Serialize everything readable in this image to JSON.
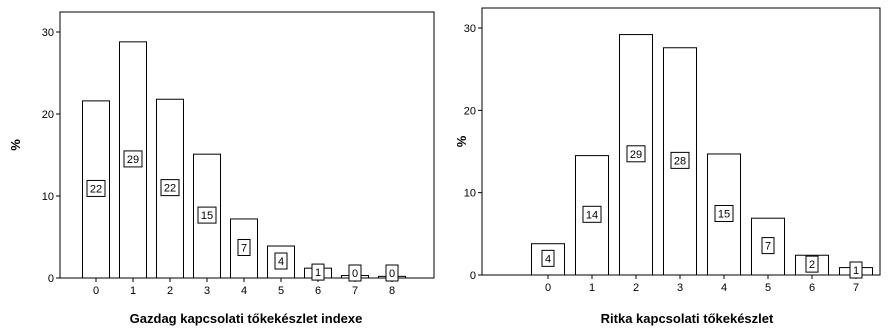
{
  "chart_data": [
    {
      "type": "bar",
      "title": "",
      "xlabel": "Gazdag kapcsolati tőkekészlet indexe",
      "ylabel": "%",
      "categories": [
        "0",
        "1",
        "2",
        "3",
        "4",
        "5",
        "6",
        "7",
        "8"
      ],
      "values": [
        21.6,
        28.8,
        21.8,
        15.1,
        7.2,
        3.9,
        1.2,
        0.3,
        0.2
      ],
      "data_labels": [
        "22",
        "29",
        "22",
        "15",
        "7",
        "4",
        "1",
        "0",
        "0"
      ],
      "ylim": [
        0,
        30
      ],
      "yticks": [
        "0",
        "10",
        "20",
        "30"
      ],
      "grid": false,
      "colors": {
        "bar_fill": "#ffffff",
        "bar_stroke": "#000000"
      }
    },
    {
      "type": "bar",
      "title": "",
      "xlabel": "Ritka kapcsolati tőkekészlet",
      "ylabel": "%",
      "categories": [
        "0",
        "1",
        "2",
        "3",
        "4",
        "5",
        "6",
        "7"
      ],
      "values": [
        3.8,
        14.5,
        29.2,
        27.6,
        14.7,
        6.9,
        2.4,
        0.9
      ],
      "data_labels": [
        "4",
        "14",
        "29",
        "28",
        "15",
        "7",
        "2",
        "1"
      ],
      "ylim": [
        0,
        30
      ],
      "yticks": [
        "0",
        "10",
        "20",
        "30"
      ],
      "grid": false,
      "colors": {
        "bar_fill": "#ffffff",
        "bar_stroke": "#000000"
      }
    }
  ]
}
